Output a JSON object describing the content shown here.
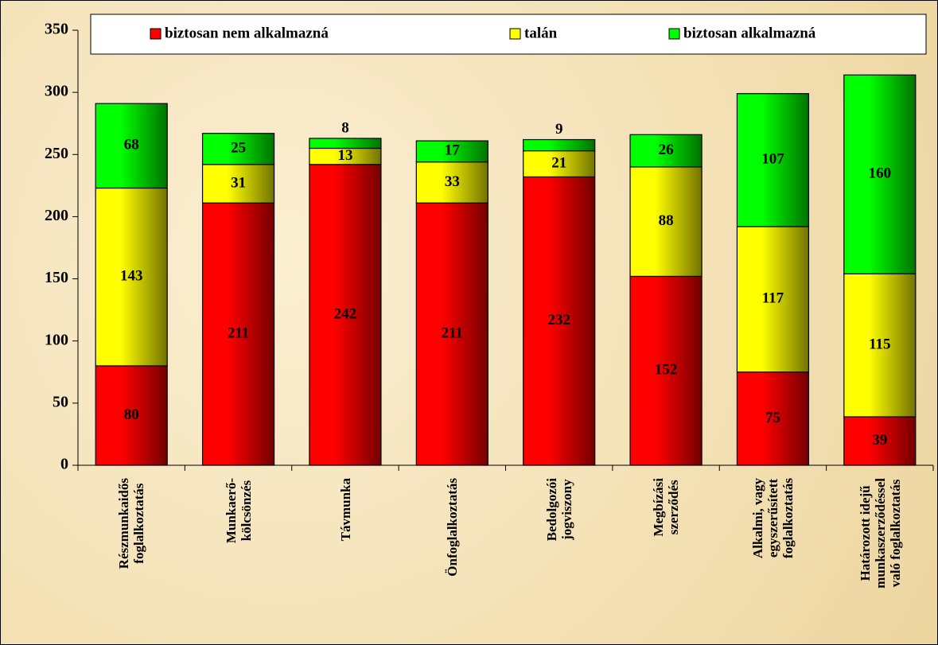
{
  "chart_data": {
    "type": "stacked_bar",
    "categories": [
      "Részmunkaidős\nfoglalkoztatás",
      "Munkaerő-\nkölcsönzés",
      "Távmunka",
      "Önfoglalkoztatás",
      "Bedolgozói\njogviszony",
      "Megbízási\nszerződés",
      "Alkalmi, vagy\negyszerűsített\nfoglalkoztatás",
      "Határozott idejű\nmunkaszerződéssel\nvaló foglalkoztatás"
    ],
    "series": [
      {
        "name": "biztosan nem alkalmazná",
        "color": "#ff0000",
        "values": [
          80,
          211,
          242,
          211,
          232,
          152,
          75,
          39
        ]
      },
      {
        "name": "talán",
        "color": "#ffff00",
        "values": [
          143,
          31,
          13,
          33,
          21,
          88,
          117,
          115
        ]
      },
      {
        "name": "biztosan alkalmazná",
        "color": "#00ff00",
        "values": [
          68,
          25,
          8,
          17,
          9,
          26,
          107,
          160
        ]
      }
    ],
    "ylim": [
      0,
      350
    ],
    "yticks": [
      0,
      50,
      100,
      150,
      200,
      250,
      300,
      350
    ],
    "legend": "top"
  }
}
